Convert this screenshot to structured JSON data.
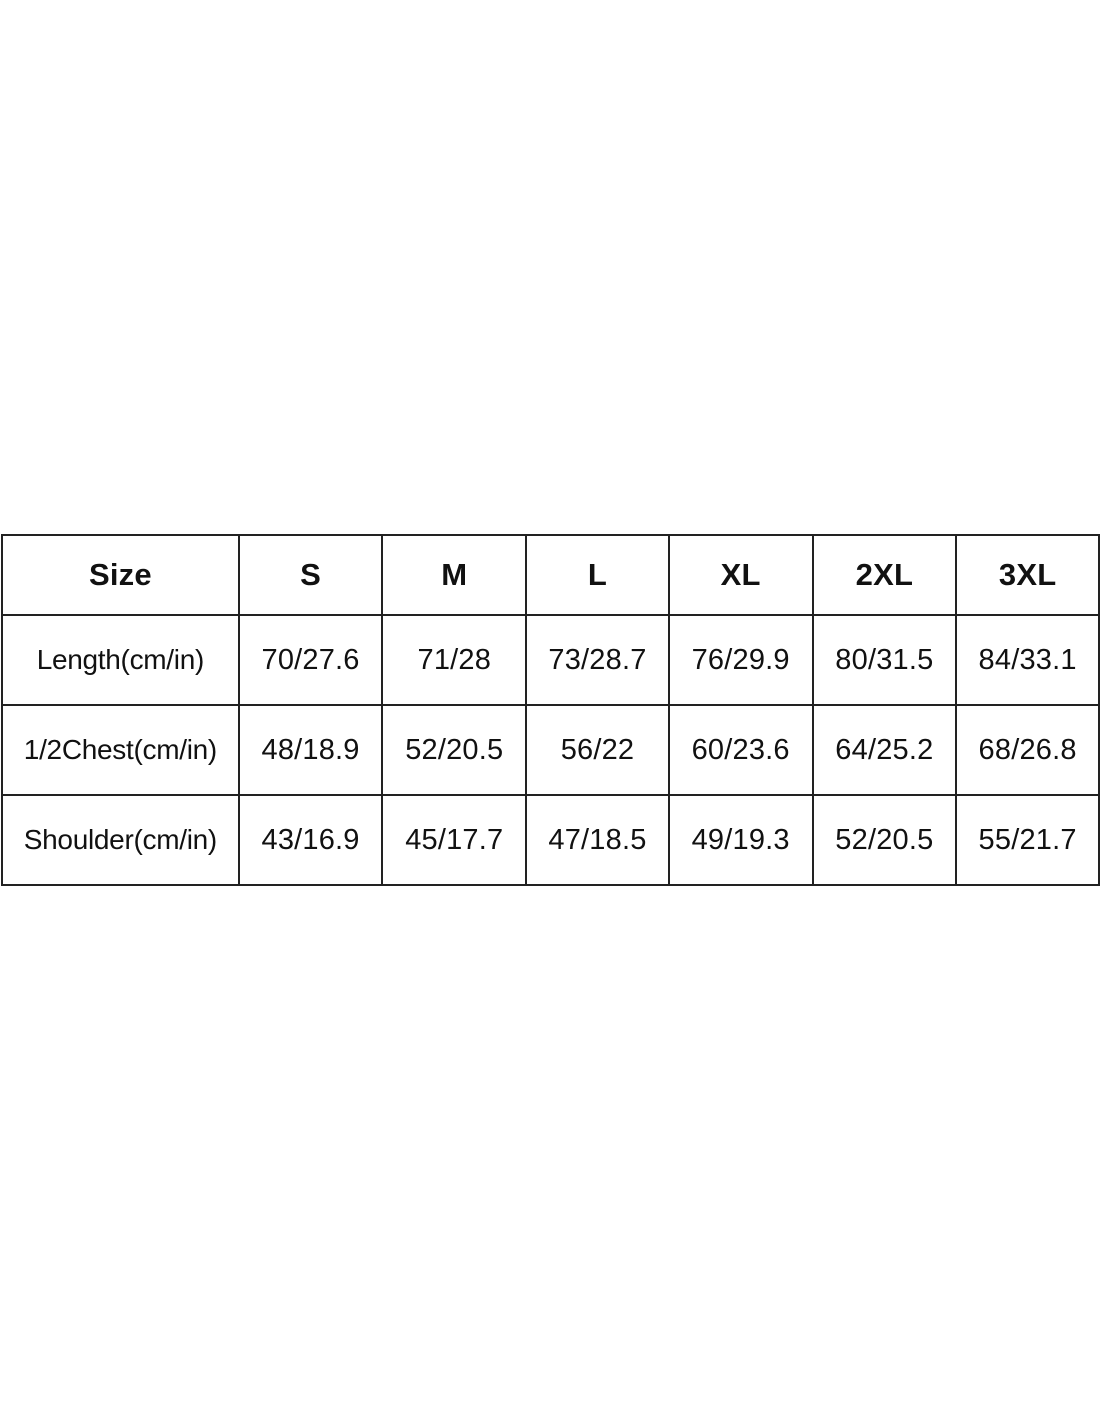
{
  "table": {
    "header": [
      "Size",
      "S",
      "M",
      "L",
      "XL",
      "2XL",
      "3XL"
    ],
    "rows": [
      {
        "label": "Length(cm/in)",
        "values": [
          "70/27.6",
          "71/28",
          "73/28.7",
          "76/29.9",
          "80/31.5",
          "84/33.1"
        ]
      },
      {
        "label": "1/2Chest(cm/in)",
        "values": [
          "48/18.9",
          "52/20.5",
          "56/22",
          "60/23.6",
          "64/25.2",
          "68/26.8"
        ]
      },
      {
        "label": "Shoulder(cm/in)",
        "values": [
          "43/16.9",
          "45/17.7",
          "47/18.5",
          "49/19.3",
          "52/20.5",
          "55/21.7"
        ]
      }
    ]
  }
}
